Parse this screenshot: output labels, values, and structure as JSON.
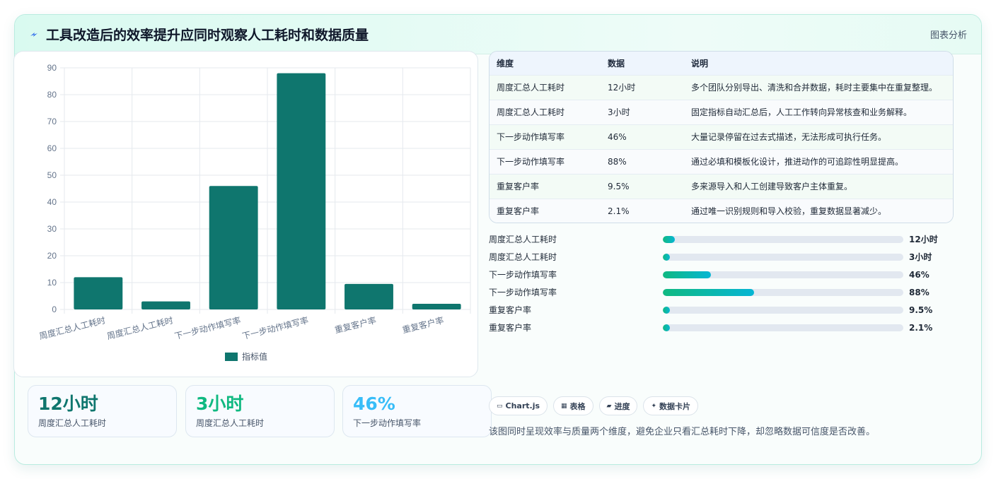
{
  "header": {
    "title": "工具改造后的效率提升应同时观察人工耗时和数据质量",
    "tag": "图表分析",
    "icon": "lightning-icon"
  },
  "chart_data": {
    "type": "bar",
    "categories": [
      "周度汇总人工耗时",
      "周度汇总人工耗时",
      "下一步动作填写率",
      "下一步动作填写率",
      "重复客户率",
      "重复客户率"
    ],
    "series": [
      {
        "name": "指标值",
        "values": [
          12,
          3,
          46,
          88,
          9.5,
          2.1
        ]
      }
    ],
    "ylim": [
      0,
      90
    ],
    "yticks": [
      0,
      10,
      20,
      30,
      40,
      50,
      60,
      70,
      80,
      90
    ],
    "grid": true,
    "legend": "bottom",
    "bar_color": "#0f766e"
  },
  "kpis": [
    {
      "value": "12小时",
      "label": "周度汇总人工耗时",
      "color": "#0f766e"
    },
    {
      "value": "3小时",
      "label": "周度汇总人工耗时",
      "color": "#10b981"
    },
    {
      "value": "46%",
      "label": "下一步动作填写率",
      "color": "#38bdf8"
    }
  ],
  "table": {
    "headers": [
      "维度",
      "数据",
      "说明"
    ],
    "rows": [
      [
        "周度汇总人工耗时",
        "12小时",
        "多个团队分别导出、清洗和合并数据，耗时主要集中在重复整理。"
      ],
      [
        "周度汇总人工耗时",
        "3小时",
        "固定指标自动汇总后，人工工作转向异常核查和业务解释。"
      ],
      [
        "下一步动作填写率",
        "46%",
        "大量记录停留在过去式描述，无法形成可执行任务。"
      ],
      [
        "下一步动作填写率",
        "88%",
        "通过必填和模板化设计，推进动作的可追踪性明显提高。"
      ],
      [
        "重复客户率",
        "9.5%",
        "多来源导入和人工创建导致客户主体重复。"
      ],
      [
        "重复客户率",
        "2.1%",
        "通过唯一识别规则和导入校验，重复数据显著减少。"
      ]
    ]
  },
  "progress": [
    {
      "label": "周度汇总人工耗时",
      "value": "12小时",
      "fraction": 0.05
    },
    {
      "label": "周度汇总人工耗时",
      "value": "3小时",
      "fraction": 0.03
    },
    {
      "label": "下一步动作填写率",
      "value": "46%",
      "fraction": 0.2
    },
    {
      "label": "下一步动作填写率",
      "value": "88%",
      "fraction": 0.38
    },
    {
      "label": "重复客户率",
      "value": "9.5%",
      "fraction": 0.03
    },
    {
      "label": "重复客户率",
      "value": "2.1%",
      "fraction": 0.03
    }
  ],
  "tags": [
    {
      "icon": "table-icon",
      "glyph": "▭",
      "label": "Chart.js"
    },
    {
      "icon": "grid-icon",
      "glyph": "▦",
      "label": "表格"
    },
    {
      "icon": "bar-icon",
      "glyph": "▰",
      "label": "进度"
    },
    {
      "icon": "sparkle-icon",
      "glyph": "✦",
      "label": "数据卡片"
    }
  ],
  "note": "该图同时呈现效率与质量两个维度，避免企业只看汇总耗时下降，却忽略数据可信度是否改善。"
}
